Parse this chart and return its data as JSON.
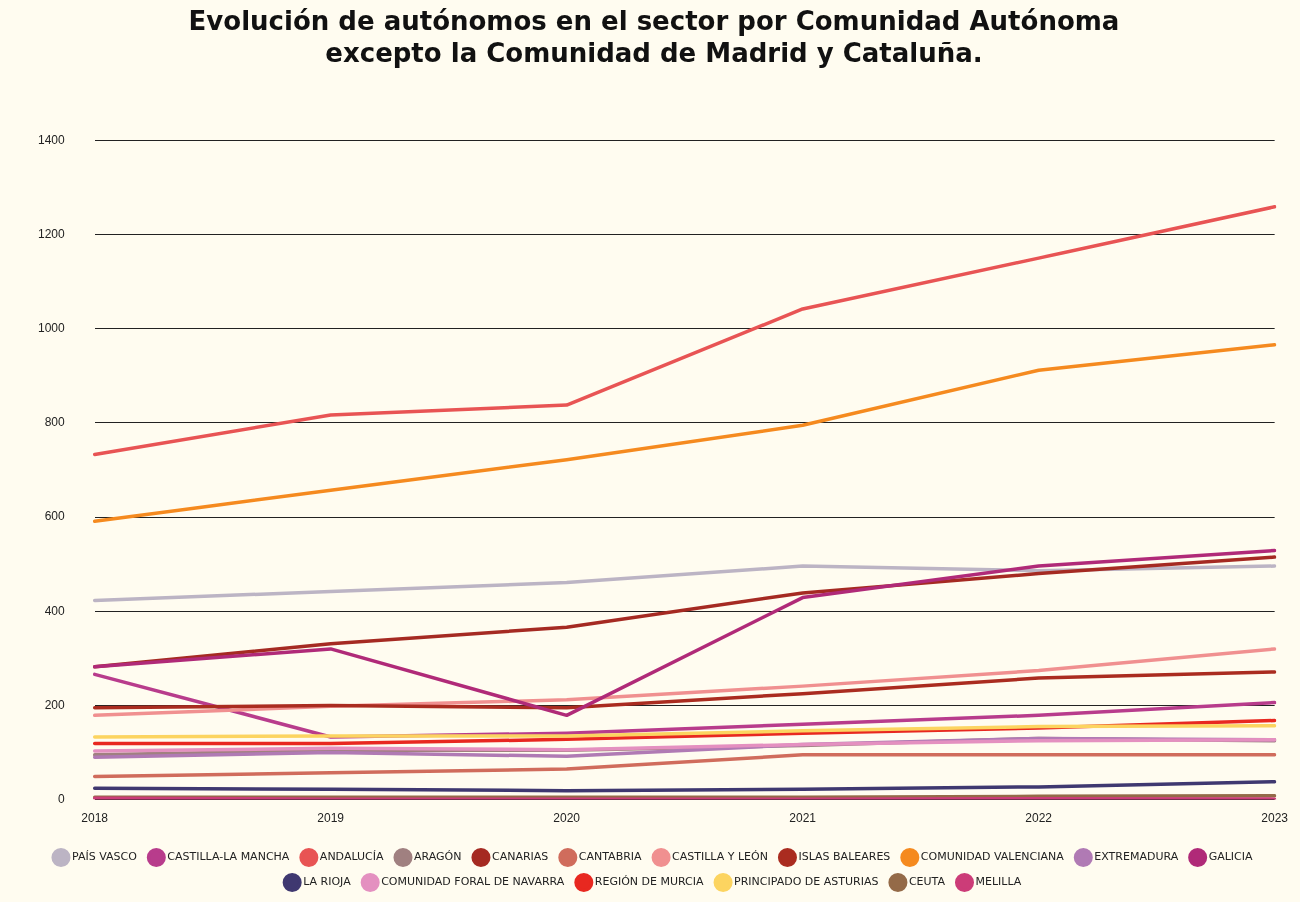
{
  "chart_data": {
    "type": "line",
    "title": "Evolución de autónomos en el sector por Comunidad Autónoma\nexcepto la Comunidad de Madrid y Cataluña.",
    "categories": [
      "2018",
      "2019",
      "2020",
      "2021",
      "2022",
      "2023"
    ],
    "ylim": [
      0,
      1400
    ],
    "yticks": [
      0,
      200,
      400,
      600,
      800,
      1000,
      1200,
      1400
    ],
    "grid": "y",
    "legend": "bottom",
    "marker": "none",
    "line_style": "solid",
    "series": [
      {
        "name": "PAÍS VASCO",
        "color": "#bcb4c4",
        "values": [
          423,
          442,
          461,
          496,
          486,
          496
        ]
      },
      {
        "name": "CASTILLA-LA MANCHA",
        "color": "#b83c8c",
        "values": [
          266,
          133,
          141,
          160,
          179,
          206
        ]
      },
      {
        "name": "ANDALUCÍA",
        "color": "#e85454",
        "values": [
          733,
          817,
          838,
          1042,
          1150,
          1259
        ]
      },
      {
        "name": "ARAGÓN",
        "color": "#a08080",
        "values": [
          95,
          105,
          105,
          115,
          130,
          125
        ]
      },
      {
        "name": "CANARIAS",
        "color": "#a52a22",
        "values": [
          282,
          331,
          366,
          439,
          480,
          515
        ]
      },
      {
        "name": "CANTABRIA",
        "color": "#d06c5c",
        "values": [
          49,
          57,
          65,
          95,
          95,
          95
        ]
      },
      {
        "name": "CASTILLA Y LEÓN",
        "color": "#f09090",
        "values": [
          179,
          198,
          212,
          241,
          274,
          320
        ]
      },
      {
        "name": "ISLAS BALEARES",
        "color": "#aa2c20",
        "values": [
          195,
          200,
          195,
          225,
          258,
          271
        ]
      },
      {
        "name": "COMUNIDAD VALENCIANA",
        "color": "#f58a1f",
        "values": [
          591,
          657,
          722,
          795,
          912,
          966
        ]
      },
      {
        "name": "EXTREMADURA",
        "color": "#b07ab4",
        "values": [
          90,
          100,
          92,
          117,
          130,
          127
        ]
      },
      {
        "name": "GALICIA",
        "color": "#b02a78",
        "values": [
          282,
          320,
          179,
          429,
          496,
          529
        ]
      },
      {
        "name": "LA RIOJA",
        "color": "#3f3870",
        "values": [
          24,
          22,
          19,
          22,
          27,
          38
        ]
      },
      {
        "name": "COMUNIDAD FORAL DE NAVARRA",
        "color": "#e490c0",
        "values": [
          103,
          109,
          106,
          117,
          125,
          127
        ]
      },
      {
        "name": "REGIÓN DE MURCIA",
        "color": "#e82820",
        "values": [
          119,
          119,
          128,
          141,
          152,
          168
        ]
      },
      {
        "name": "PRINCIPADO DE ASTURIAS",
        "color": "#fcd460",
        "values": [
          133,
          135,
          135,
          146,
          155,
          157
        ]
      },
      {
        "name": "CEUTA",
        "color": "#946a48",
        "values": [
          5,
          5,
          5,
          5,
          7,
          8
        ]
      },
      {
        "name": "MELILLA",
        "color": "#cc3c78",
        "values": [
          3,
          1,
          1,
          1,
          2,
          1
        ]
      }
    ]
  }
}
